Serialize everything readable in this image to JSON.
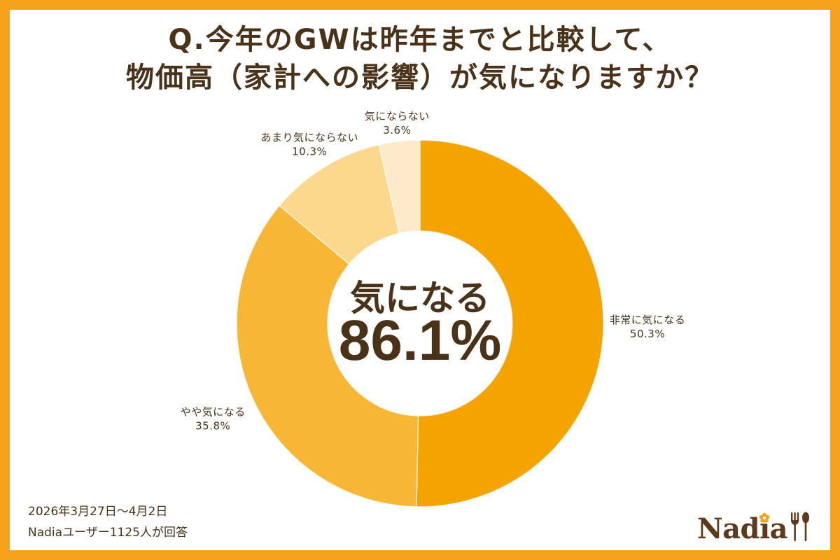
{
  "title": {
    "line1": "Q.今年のGWは昨年までと比較して、",
    "line2": "物価高（家計への影響）が気になりますか？"
  },
  "center": {
    "label": "気になる",
    "value": "86.1%"
  },
  "footnote": {
    "period": "2026年3月27日～4月2日",
    "respondents": "Nadiaユーザー1125人が回答"
  },
  "brand": {
    "logo_text": "Nadia",
    "logo_icons": [
      "flower-icon",
      "fork-spoon-icon"
    ]
  },
  "colors": {
    "frame": "#F5A31C",
    "text": "#4A3218",
    "background": "#FFFFFF",
    "logo": "#5B3A1E",
    "logo_accent": "#F5A31C"
  },
  "chart_data": {
    "type": "pie",
    "variant": "donut",
    "categories": [
      "非常に気になる",
      "やや気になる",
      "あまり気にならない",
      "気にならない"
    ],
    "values": [
      50.3,
      35.8,
      10.3,
      3.6
    ],
    "unit": "%",
    "colors": [
      "#F5A300",
      "#F7B636",
      "#FBD88C",
      "#FDEACB"
    ],
    "start": "top",
    "direction": "clockwise",
    "legend": "none"
  }
}
